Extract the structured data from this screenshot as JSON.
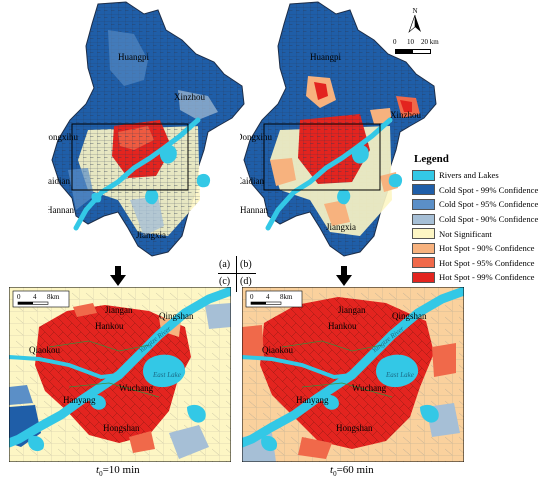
{
  "north_arrow": {
    "label": "N"
  },
  "scale_top": {
    "ticks": [
      "0",
      "10",
      "20 km"
    ]
  },
  "scale_inset": {
    "ticks": [
      "0",
      "4",
      "8km"
    ]
  },
  "legend": {
    "title": "Legend",
    "items": [
      {
        "label": "Rivers and Lakes",
        "color": "#33c8e6"
      },
      {
        "label": "Cold Spot - 99% Confidence",
        "color": "#1f5ea8"
      },
      {
        "label": "Cold Spot - 95% Confidence",
        "color": "#5b8fc7"
      },
      {
        "label": "Cold Spot - 90% Confidence",
        "color": "#a6bfd6"
      },
      {
        "label": "Not Significant",
        "color": "#fdf6c4"
      },
      {
        "label": "Hot Spot - 90% Confidence",
        "color": "#f7b27e"
      },
      {
        "label": "Hot Spot - 95% Confidence",
        "color": "#f0694a"
      },
      {
        "label": "Hot Spot - 99% Confidence",
        "color": "#e3241f"
      }
    ]
  },
  "panel_labels": {
    "a": "(a)",
    "b": "(b)",
    "c": "(c)",
    "d": "(d)"
  },
  "district_labels_overview": {
    "huangpi": "Huangpi",
    "xinzhou": "Xinzhou",
    "dongxihu": "Dongxihu",
    "caidian": "Caidian",
    "hannan": "Hannan",
    "jiangxia": "Jiangxia"
  },
  "district_labels_inset": {
    "jiangan": "Jiangan",
    "hankou": "Hankou",
    "qingshan": "Qingshan",
    "qiaokou": "Qiaokou",
    "wuchang": "Wuchang",
    "hanyang": "Hanyang",
    "hongshan": "Hongshan",
    "yangtze": "Yangtze River",
    "east_lake": "East Lake"
  },
  "captions": {
    "left_sym": "t",
    "left_sub": "0",
    "left_val": "=10 min",
    "right_sym": "t",
    "right_sub": "0",
    "right_val": "=60 min"
  }
}
